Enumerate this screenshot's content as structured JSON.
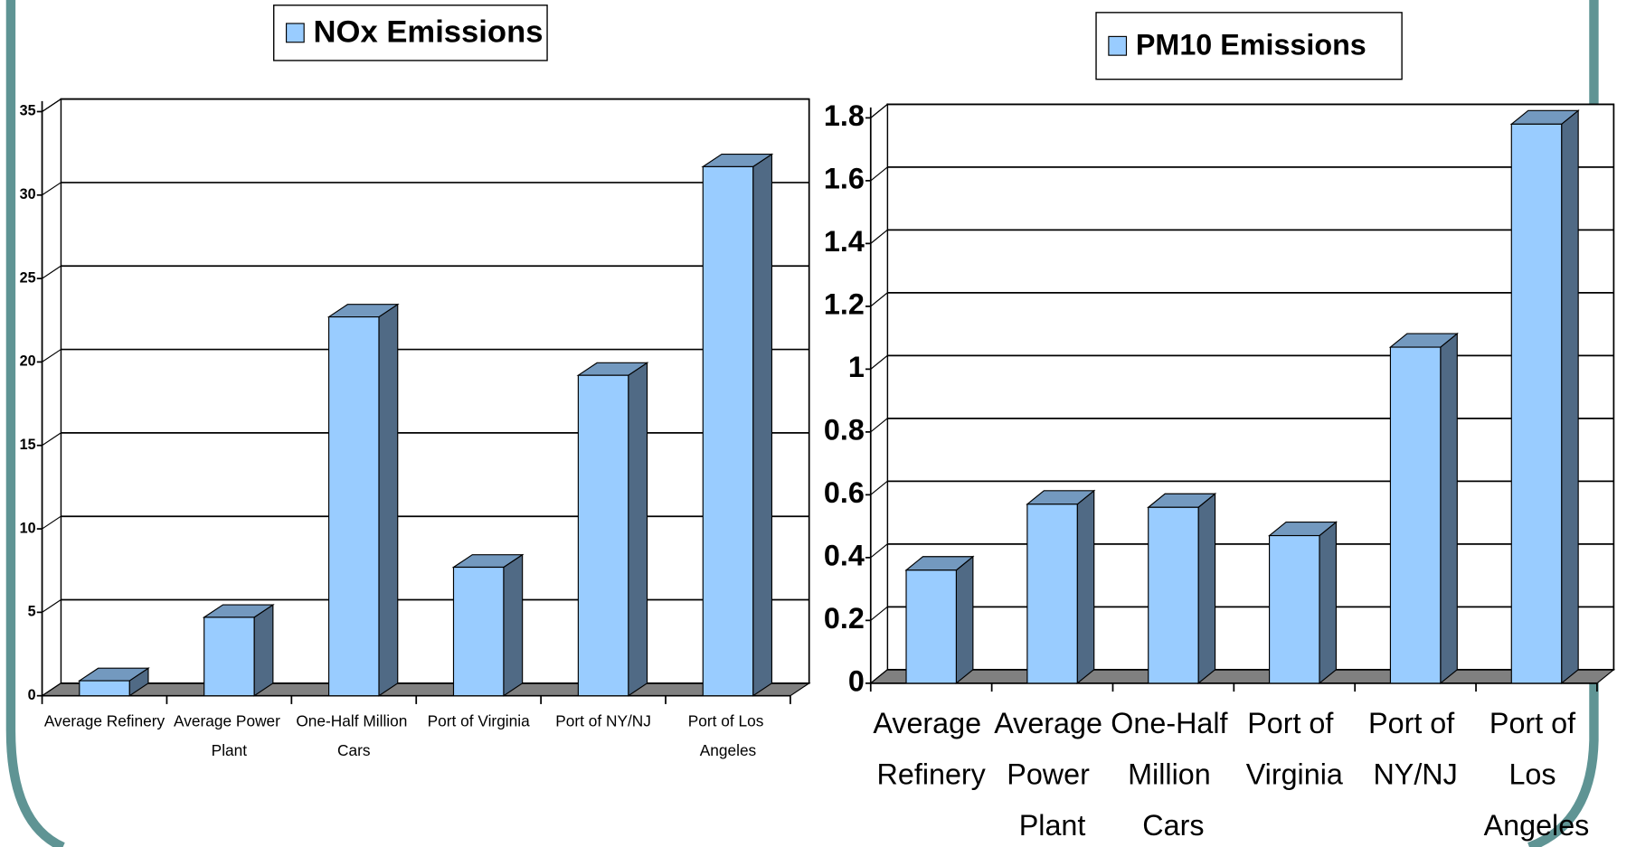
{
  "chart_data": [
    {
      "type": "bar",
      "categories": [
        "Average Refinery",
        "Average Power Plant",
        "One-Half Million Cars",
        "Port of Virginia",
        "Port of NY/NJ",
        "Port of Los Angeles"
      ],
      "series": [
        {
          "name": "NOx Emissions",
          "color": "#99ccff",
          "values": [
            0.9,
            4.7,
            22.7,
            7.7,
            19.2,
            31.7
          ]
        }
      ],
      "ylim": [
        0,
        35
      ],
      "yticks": [
        0,
        5,
        10,
        15,
        20,
        25,
        30,
        35
      ],
      "grid": true
    },
    {
      "type": "bar",
      "categories": [
        "Average Refinery",
        "Average Power Plant",
        "One-Half Million Cars",
        "Port of Virginia",
        "Port of NY/NJ",
        "Port of Los Angeles"
      ],
      "series": [
        {
          "name": "PM10 Emissions",
          "color": "#99ccff",
          "values": [
            0.36,
            0.57,
            0.56,
            0.47,
            1.07,
            1.78
          ]
        }
      ],
      "ylim": [
        0,
        1.8
      ],
      "yticks": [
        0,
        0.2,
        0.4,
        0.6,
        0.8,
        1,
        1.2,
        1.4,
        1.6,
        1.8
      ],
      "grid": true
    }
  ]
}
